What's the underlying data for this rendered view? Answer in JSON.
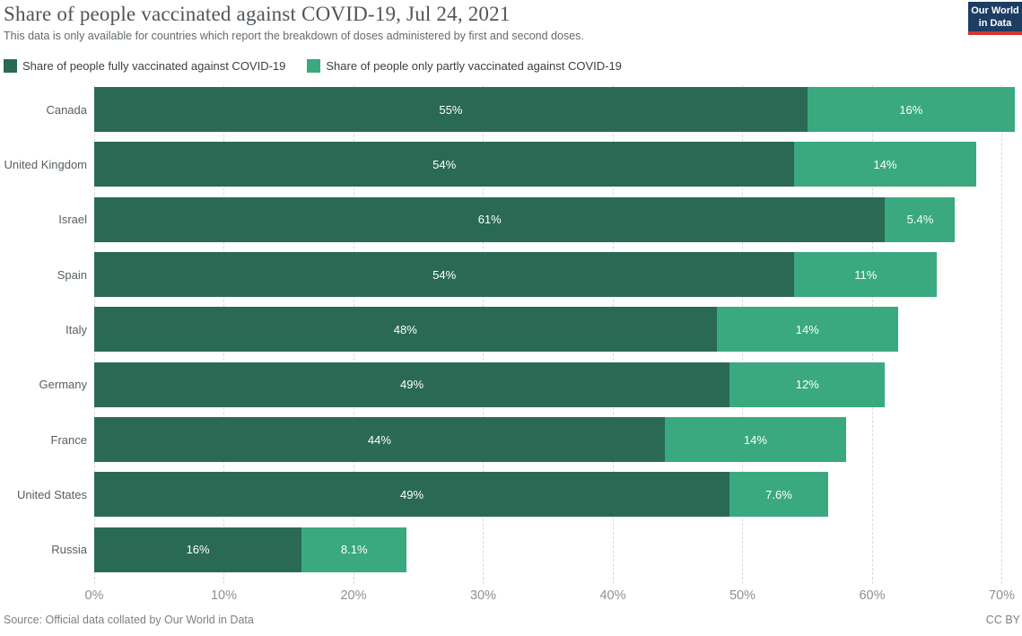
{
  "header": {
    "title": "Share of people vaccinated against COVID-19, Jul 24, 2021",
    "subtitle": "This data is only available for countries which report the breakdown of doses administered by first and second doses."
  },
  "logo": {
    "line1": "Our World",
    "line2": "in Data",
    "bg_color": "#1d3d63",
    "accent_color": "#d7352c"
  },
  "legend": {
    "items": [
      {
        "label": "Share of people fully vaccinated against COVID-19",
        "color": "#2a6a55"
      },
      {
        "label": "Share of people only partly vaccinated against COVID-19",
        "color": "#3aa980"
      }
    ]
  },
  "chart_data": {
    "type": "bar",
    "orientation": "horizontal",
    "stacked": true,
    "title": "Share of people vaccinated against COVID-19, Jul 24, 2021",
    "categories": [
      "Canada",
      "United Kingdom",
      "Israel",
      "Spain",
      "Italy",
      "Germany",
      "France",
      "United States",
      "Russia"
    ],
    "series": [
      {
        "name": "Share of people fully vaccinated against COVID-19",
        "color": "#2a6a55",
        "values": [
          55,
          54,
          61,
          54,
          48,
          49,
          44,
          49,
          16
        ],
        "labels": [
          "55%",
          "54%",
          "61%",
          "54%",
          "48%",
          "49%",
          "44%",
          "49%",
          "16%"
        ]
      },
      {
        "name": "Share of people only partly vaccinated against COVID-19",
        "color": "#3aa980",
        "values": [
          16,
          14,
          5.4,
          11,
          14,
          12,
          14,
          7.6,
          8.1
        ],
        "labels": [
          "16%",
          "14%",
          "5.4%",
          "11%",
          "14%",
          "12%",
          "14%",
          "7.6%",
          "8.1%"
        ]
      }
    ],
    "totals": [
      71,
      68,
      66.4,
      65,
      62,
      61,
      58,
      56.6,
      24.1
    ],
    "xlim": [
      0,
      70
    ],
    "x_tick_labels": [
      "0%",
      "10%",
      "20%",
      "30%",
      "40%",
      "50%",
      "60%",
      "70%"
    ],
    "grid": true,
    "grid_style": "dashed-vertical",
    "legend_position": "top",
    "value_label_color": "#ffffff"
  },
  "footer": {
    "source": "Source: Official data collated by Our World in Data",
    "license": "CC BY"
  }
}
